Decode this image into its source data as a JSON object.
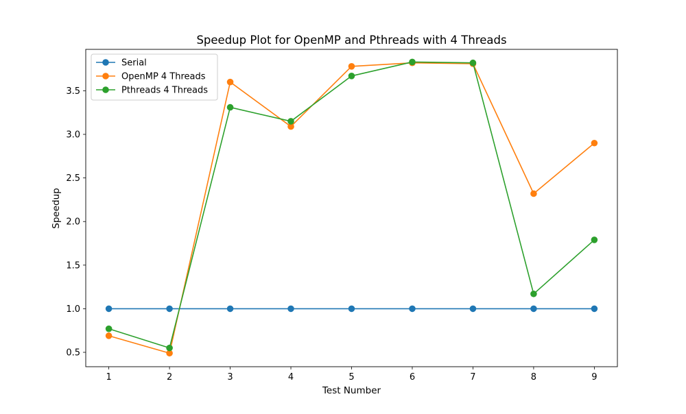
{
  "chart_data": {
    "type": "line",
    "title": "Speedup Plot for OpenMP and Pthreads with 4 Threads",
    "xlabel": "Test Number",
    "ylabel": "Speedup",
    "x": [
      1,
      2,
      3,
      4,
      5,
      6,
      7,
      8,
      9
    ],
    "xlim": [
      0.62,
      9.38
    ],
    "ylim": [
      0.335,
      3.975
    ],
    "xticks": [
      1,
      2,
      3,
      4,
      5,
      6,
      7,
      8,
      9
    ],
    "yticks": [
      0.5,
      1.0,
      1.5,
      2.0,
      2.5,
      3.0,
      3.5
    ],
    "ytick_labels": [
      "0.5",
      "1.0",
      "1.5",
      "2.0",
      "2.5",
      "3.0",
      "3.5"
    ],
    "grid": false,
    "legend_position": "upper-left",
    "series": [
      {
        "name": "Serial",
        "color": "#1f77b4",
        "marker": "circle",
        "values": [
          1.0,
          1.0,
          1.0,
          1.0,
          1.0,
          1.0,
          1.0,
          1.0,
          1.0
        ]
      },
      {
        "name": "OpenMP 4 Threads",
        "color": "#ff7f0e",
        "marker": "circle",
        "values": [
          0.69,
          0.49,
          3.6,
          3.09,
          3.78,
          3.82,
          3.81,
          2.32,
          2.9
        ]
      },
      {
        "name": "Pthreads 4 Threads",
        "color": "#2ca02c",
        "marker": "circle",
        "values": [
          0.77,
          0.55,
          3.31,
          3.15,
          3.67,
          3.83,
          3.82,
          1.17,
          1.79
        ]
      }
    ]
  }
}
